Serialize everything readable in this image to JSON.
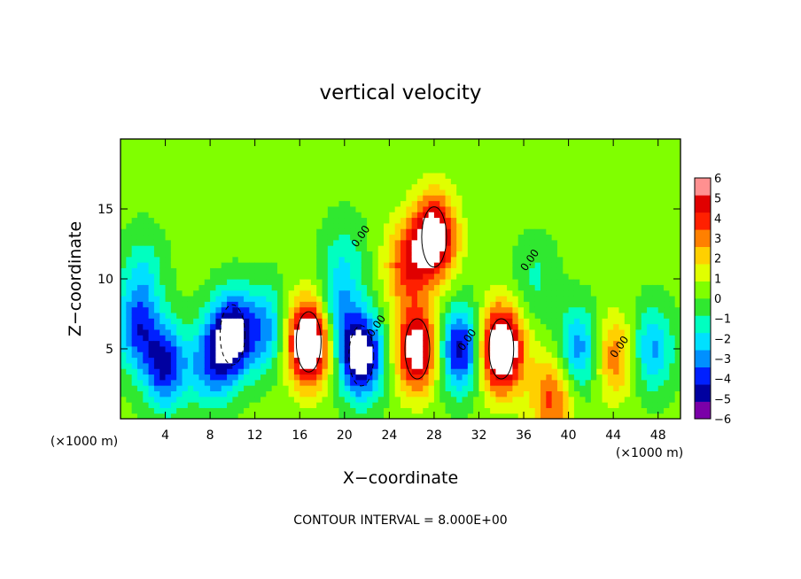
{
  "chart_data": {
    "type": "heatmap",
    "title": "vertical velocity",
    "xlabel": "X−coordinate",
    "ylabel": "Z−coordinate",
    "x_unit": "(×1000 m)",
    "x_unit_right": "(×1000 m)",
    "x_ticks": [
      "4",
      "8",
      "12",
      "16",
      "20",
      "24",
      "28",
      "32",
      "36",
      "40",
      "44",
      "48"
    ],
    "y_ticks": [
      "5",
      "10",
      "15"
    ],
    "xlim": [
      0,
      50
    ],
    "ylim": [
      0,
      20
    ],
    "contour_interval_text": "CONTOUR INTERVAL = 8.000E+00",
    "contour_labels": [
      "0.00",
      "0.00",
      "0.00",
      "0.00",
      "0.00"
    ],
    "colorbar": {
      "ticks": [
        "6",
        "5",
        "4",
        "3",
        "2",
        "1",
        "0",
        "−1",
        "−2",
        "−3",
        "−4",
        "−5",
        "−6"
      ],
      "range": [
        -6,
        6
      ],
      "colors": [
        "#7a00a8",
        "#0000a0",
        "#0020ff",
        "#0090ff",
        "#00e0ff",
        "#00ffc0",
        "#30e830",
        "#80ff00",
        "#e0ff00",
        "#ffd000",
        "#ff8000",
        "#ff2000",
        "#e00000",
        "#ff9090"
      ]
    },
    "features": [
      {
        "x": 1.5,
        "z": 6.5,
        "w": -4.5
      },
      {
        "x": 4.0,
        "z": 3.8,
        "w": -5.5
      },
      {
        "x": 10.0,
        "z": 6.0,
        "w": -7.0
      },
      {
        "x": 8.0,
        "z": 4.0,
        "w": -4.0
      },
      {
        "x": 13.0,
        "z": 6.5,
        "w": -3.5
      },
      {
        "x": 16.8,
        "z": 5.5,
        "w": 9.0
      },
      {
        "x": 21.5,
        "z": 4.5,
        "w": -7.5
      },
      {
        "x": 19.5,
        "z": 7.5,
        "w": -3.0
      },
      {
        "x": 26.5,
        "z": 5.0,
        "w": 7.0
      },
      {
        "x": 28.0,
        "z": 13.0,
        "w": 7.5
      },
      {
        "x": 25.5,
        "z": 11.0,
        "w": 4.0
      },
      {
        "x": 30.3,
        "z": 5.0,
        "w": -6.0
      },
      {
        "x": 34.0,
        "z": 5.0,
        "w": 9.0
      },
      {
        "x": 38.5,
        "z": 1.5,
        "w": 4.0
      },
      {
        "x": 41.0,
        "z": 5.0,
        "w": -4.0
      },
      {
        "x": 44.0,
        "z": 4.5,
        "w": 3.5
      },
      {
        "x": 47.5,
        "z": 5.0,
        "w": -3.5
      },
      {
        "x": 2.0,
        "z": 10.5,
        "w": -2.0
      },
      {
        "x": 20.0,
        "z": 11.5,
        "w": -1.8
      },
      {
        "x": 37.0,
        "z": 10.0,
        "w": -1.5
      }
    ]
  }
}
